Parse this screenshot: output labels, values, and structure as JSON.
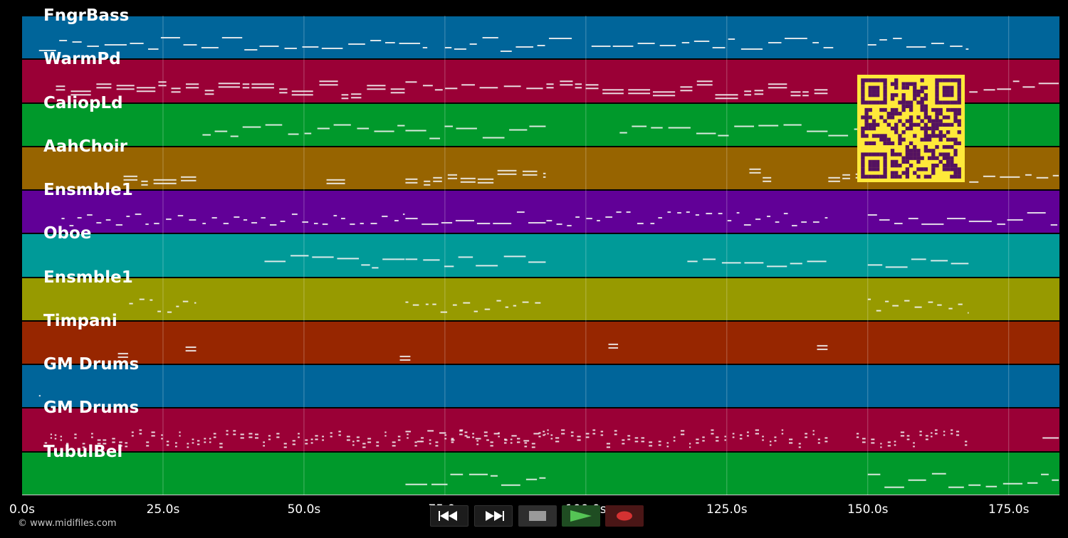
{
  "tracks": [
    {
      "label": "FngrBass",
      "color": "#00659a"
    },
    {
      "label": "WarmPd",
      "color": "#9a0036"
    },
    {
      "label": "CaliopLd",
      "color": "#00992b"
    },
    {
      "label": "AahChoir",
      "color": "#976400"
    },
    {
      "label": "Ensmble1",
      "color": "#610097"
    },
    {
      "label": "Oboe",
      "color": "#009a98"
    },
    {
      "label": "Ensmble1",
      "color": "#979a00"
    },
    {
      "label": "Timpani",
      "color": "#972600"
    },
    {
      "label": "GM Drums",
      "color": "#00659a"
    },
    {
      "label": "GM Drums",
      "color": "#9a0036"
    },
    {
      "label": "TubulBel",
      "color": "#00992b"
    }
  ],
  "timeline": {
    "tick_labels": [
      "0.0s",
      "25.0s",
      "50.0s",
      "75.0s",
      "100.0s",
      "125.0s",
      "150.0s",
      "175.0s"
    ],
    "tick_seconds": [
      0,
      25,
      50,
      75,
      100,
      125,
      150,
      175
    ],
    "duration_seconds": 184
  },
  "transport": {
    "rewind_icon": "rewind-icon",
    "fast_forward_icon": "fast-forward-icon",
    "stop_icon": "stop-icon",
    "play_icon": "play-icon",
    "record_icon": "record-icon",
    "play_color": "#55c455",
    "record_color": "#d43232"
  },
  "footer": {
    "copyright": "© www.midifiles.com"
  },
  "overlay": {
    "qr_code": "qr-code",
    "qr_fg": "#541260",
    "qr_bg": "#ffe93a"
  }
}
